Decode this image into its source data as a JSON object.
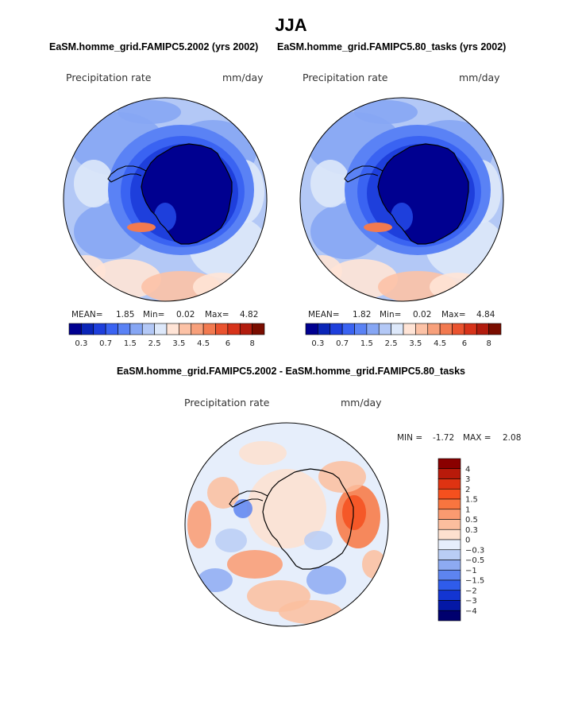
{
  "figure": {
    "title": "JJA"
  },
  "chart_data": [
    {
      "type": "heatmap",
      "title": "EaSM.homme_grid.FAMIPC5.2002 (yrs 2002)",
      "variable_label": "Precipitation rate",
      "units": "mm/day",
      "projection": "south-polar-stereographic",
      "stats": {
        "mean_label": "MEAN=",
        "mean": "1.85",
        "min_label": "Min=",
        "min": "0.02",
        "max_label": "Max=",
        "max": "4.82"
      },
      "colorbar": {
        "orientation": "horizontal",
        "tick_labels": [
          "0.3",
          "0.7",
          "1.5",
          "2.5",
          "3.5",
          "4.5",
          "6",
          "8"
        ],
        "colors": [
          "#000090",
          "#0a25b8",
          "#1e3fdc",
          "#3a63f2",
          "#5a82f5",
          "#86a6f4",
          "#b3c8f6",
          "#dde8fa",
          "#ffe4d6",
          "#fcc2a6",
          "#f7a07b",
          "#f27a50",
          "#ea532f",
          "#d7331a",
          "#b21c0e",
          "#7a0d00"
        ]
      }
    },
    {
      "type": "heatmap",
      "title": "EaSM.homme_grid.FAMIPC5.80_tasks (yrs 2002)",
      "variable_label": "Precipitation rate",
      "units": "mm/day",
      "projection": "south-polar-stereographic",
      "stats": {
        "mean_label": "MEAN=",
        "mean": "1.82",
        "min_label": "Min=",
        "min": "0.02",
        "max_label": "Max=",
        "max": "4.84"
      },
      "colorbar": {
        "orientation": "horizontal",
        "tick_labels": [
          "0.3",
          "0.7",
          "1.5",
          "2.5",
          "3.5",
          "4.5",
          "6",
          "8"
        ],
        "colors": [
          "#000090",
          "#0a25b8",
          "#1e3fdc",
          "#3a63f2",
          "#5a82f5",
          "#86a6f4",
          "#b3c8f6",
          "#dde8fa",
          "#ffe4d6",
          "#fcc2a6",
          "#f7a07b",
          "#f27a50",
          "#ea532f",
          "#d7331a",
          "#b21c0e",
          "#7a0d00"
        ]
      }
    },
    {
      "type": "heatmap",
      "title": "EaSM.homme_grid.FAMIPC5.2002 - EaSM.homme_grid.FAMIPC5.80_tasks",
      "variable_label": "Precipitation rate",
      "units": "mm/day",
      "projection": "south-polar-stereographic",
      "stats": {
        "min_label": "MIN =",
        "min": "-1.72",
        "max_label": "MAX =",
        "max": "2.08"
      },
      "colorbar": {
        "orientation": "vertical",
        "tick_labels": [
          "4",
          "3",
          "2",
          "1.5",
          "1",
          "0.5",
          "0.3",
          "0",
          "-0.3",
          "-0.5",
          "-1",
          "-1.5",
          "-2",
          "-3",
          "-4"
        ],
        "colors": [
          "#8a0000",
          "#b81a0a",
          "#de3312",
          "#f5501e",
          "#f8753f",
          "#fa9a70",
          "#fcbe9e",
          "#fde0cf",
          "#e6eefb",
          "#b9cdf5",
          "#8daaf2",
          "#5d84f0",
          "#2f5ceb",
          "#1335d2",
          "#0418a6",
          "#00006e"
        ]
      }
    }
  ]
}
